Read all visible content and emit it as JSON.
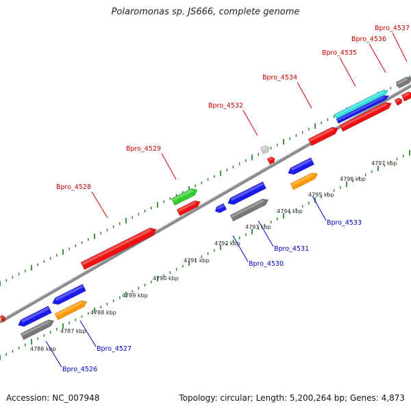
{
  "title": "Polaromonas sp. JS666, complete genome",
  "footer": {
    "accession": "Accession: NC_007948",
    "summary": "Topology: circular; Length: 5,200,264 bp; Genes: 4,873"
  },
  "scale_labels": [
    "4786 kbp",
    "4787 kbp",
    "4788 kbp",
    "4789 kbp",
    "4790 kbp",
    "4791 kbp",
    "4792 kbp",
    "4793 kbp",
    "4794 kbp",
    "4795 kbp",
    "4796 kbp",
    "4797 kbp"
  ],
  "colors": {
    "backbone": "#8a8a8a",
    "tick": "#2a8a2a",
    "forward_label": "#cc0000",
    "reverse_label": "#0000cc",
    "red": "#ee1111",
    "blue": "#1a1aee",
    "orange": "#ff9900",
    "gray": "#777777",
    "green": "#33cc33",
    "cyan": "#33dddd",
    "lightgray": "#cccccc"
  },
  "gene_labels": {
    "top": [
      "Bpro_4528",
      "Bpro_4529",
      "Bpro_4532",
      "Bpro_4534",
      "Bpro_4535",
      "Bpro_4536",
      "Bpro_4537"
    ],
    "bottom": [
      "Bpro_4526",
      "Bpro_4527",
      "Bpro_4530",
      "Bpro_4531",
      "Bpro_4533"
    ]
  }
}
